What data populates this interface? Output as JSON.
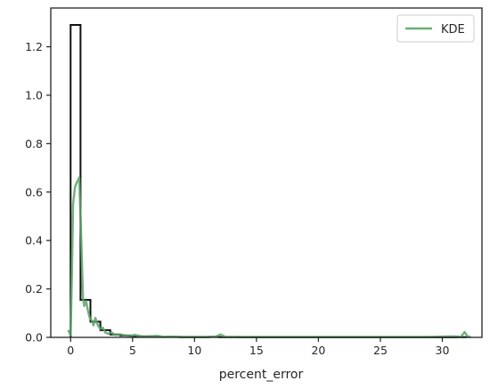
{
  "chart_data": {
    "type": "histogram",
    "xlabel": "percent_error",
    "ylabel": "",
    "xlim": [
      -1.6,
      33.2
    ],
    "ylim": [
      0,
      1.36
    ],
    "xticks": [
      0,
      5,
      10,
      15,
      20,
      25,
      30
    ],
    "yticks": [
      0.0,
      0.2,
      0.4,
      0.6,
      0.8,
      1.0,
      1.2
    ],
    "xtick_labels": [
      "0",
      "5",
      "10",
      "15",
      "20",
      "25",
      "30"
    ],
    "ytick_labels": [
      "0.0",
      "0.2",
      "0.4",
      "0.6",
      "0.8",
      "1.0",
      "1.2"
    ],
    "legend": {
      "position": "upper-right",
      "entries": [
        {
          "label": "KDE",
          "color": "#6aae78"
        }
      ]
    },
    "colors": {
      "histogram": "#111111",
      "kde": "#5aa36a",
      "axes": "#222222"
    },
    "histogram_step": {
      "x": [
        0.0,
        0.8,
        1.6,
        2.4,
        3.2,
        4.0,
        4.8,
        5.6,
        6.4,
        7.2,
        8.0,
        8.8,
        9.6,
        10.4,
        11.2,
        12.0,
        12.8,
        13.6,
        14.4,
        15.2,
        16.0,
        16.8,
        17.6,
        18.4,
        19.2,
        20.0,
        20.8,
        21.6,
        22.4,
        23.2,
        24.0,
        24.8,
        25.6,
        26.4,
        27.2,
        28.0,
        28.8,
        29.6,
        30.4,
        31.2,
        32.0
      ],
      "values": [
        1.29,
        0.155,
        0.065,
        0.03,
        0.012,
        0.008,
        0.005,
        0.004,
        0.003,
        0.002,
        0.002,
        0.001,
        0.001,
        0.001,
        0.002,
        0.001,
        0.001,
        0.0005,
        0.0005,
        0.0005,
        0.0005,
        0.0005,
        0.0005,
        0.0005,
        0.0005,
        0.0005,
        0.0005,
        0.0005,
        0.0005,
        0.0005,
        0.0005,
        0.0005,
        0.0005,
        0.0005,
        0.0005,
        0.0005,
        0.0005,
        0.0005,
        0.0005,
        0.001
      ]
    },
    "kde": {
      "name": "KDE",
      "x": [
        -0.2,
        0.0,
        0.1,
        0.2,
        0.35,
        0.5,
        0.7,
        0.85,
        1.0,
        1.1,
        1.25,
        1.4,
        1.55,
        1.7,
        1.85,
        2.0,
        2.2,
        2.4,
        2.6,
        2.8,
        3.0,
        3.3,
        3.6,
        4.0,
        4.4,
        4.8,
        5.2,
        5.6,
        6.0,
        7.0,
        7.5,
        8.0,
        9.0,
        10.0,
        11.0,
        11.7,
        12.1,
        12.5,
        13.5,
        15.0,
        18.0,
        21.0,
        24.0,
        27.0,
        29.0,
        30.0,
        31.0,
        31.5,
        31.8,
        32.0,
        32.3
      ],
      "y": [
        0.03,
        0.01,
        0.25,
        0.55,
        0.62,
        0.64,
        0.66,
        0.42,
        0.16,
        0.13,
        0.15,
        0.11,
        0.08,
        0.07,
        0.05,
        0.08,
        0.05,
        0.035,
        0.04,
        0.02,
        0.015,
        0.02,
        0.01,
        0.012,
        0.008,
        0.006,
        0.01,
        0.005,
        0.003,
        0.006,
        0.002,
        0.003,
        0.002,
        0.002,
        0.002,
        0.003,
        0.012,
        0.002,
        0.002,
        0.002,
        0.002,
        0.002,
        0.002,
        0.002,
        0.002,
        0.003,
        0.004,
        0.002,
        0.022,
        0.006,
        0.0
      ]
    }
  }
}
